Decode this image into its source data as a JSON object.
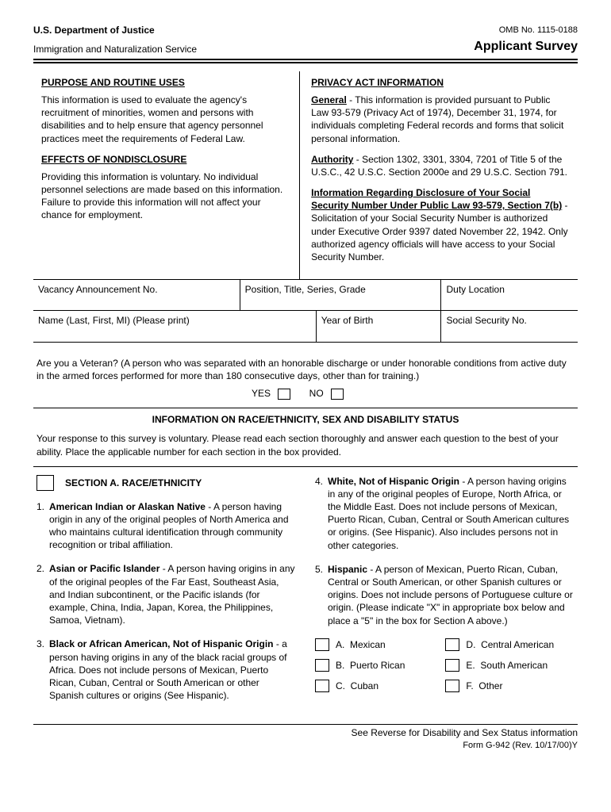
{
  "header": {
    "dept": "U.S. Department of Justice",
    "agency": "Immigration and Naturalization Service",
    "omb": "OMB No. 1115-0188",
    "title": "Applicant Survey"
  },
  "left": {
    "purpose_head": "PURPOSE AND ROUTINE USES",
    "purpose_body": "This information is used to evaluate the agency's recruitment of minorities, women and persons with disabilities and to help ensure that agency personnel practices meet the requirements of Federal Law.",
    "effects_head": "EFFECTS OF NONDISCLOSURE",
    "effects_body": "Providing this information is voluntary.  No individual personnel selections are made based on this information.  Failure to provide this information will not affect your chance for employment."
  },
  "right": {
    "privacy_head": "PRIVACY ACT INFORMATION",
    "general_label": "General",
    "general_body": " - This information is provided pursuant to Public Law 93-579 (Privacy Act of 1974), December 31, 1974, for individuals completing Federal records and forms that solicit personal information.",
    "authority_label": "Authority",
    "authority_body": " - Section 1302, 3301, 3304, 7201 of Title 5 of the U.S.C., 42 U.S.C. Section 2000e and 29 U.S.C. Section 791.",
    "ssn_head": "Information Regarding Disclosure of Your Social Security Number Under Public Law 93-579, Section 7(b)",
    "ssn_body": " - Solicitation of your Social Security Number is authorized under Executive Order 9397 dated November 22, 1942.  Only authorized agency officials will have access to your Social Security Number."
  },
  "fields": {
    "vacancy": "Vacancy Announcement No.",
    "position": "Position, Title, Series, Grade",
    "duty": "Duty Location",
    "name": "Name (Last, First, MI) (Please print)",
    "yob": "Year of Birth",
    "ssn": "Social Security No."
  },
  "veteran": {
    "q": "Are you a Veteran?  (A person who was separated with an honorable discharge or under honorable conditions from active duty in the armed forces performed for more than 180 consecutive days, other than for training.)",
    "yes": "YES",
    "no": "NO"
  },
  "info_head": "INFORMATION ON RACE/ETHNICITY, SEX AND DISABILITY STATUS",
  "info_instr": "Your response to this survey is voluntary.  Please read each section thoroughly and answer each question to the best of your ability.  Place the applicable number for each section in the box provided.",
  "sectionA": {
    "title": "SECTION A.  RACE/ETHNICITY",
    "items": [
      {
        "n": "1.",
        "label": "American Indian or Alaskan Native",
        "body": " - A person having origin in any of the original peoples of North America and who maintains cultural  identification through community recognition or tribal affiliation."
      },
      {
        "n": "2.",
        "label": "Asian or Pacific Islander",
        "body": " - A person having origins in any of the original peoples of the Far East, Southeast Asia, and Indian subcontinent, or the Pacific islands (for example, China, India, Japan, Korea, the Philippines, Samoa, Vietnam)."
      },
      {
        "n": "3.",
        "label": "Black or African American, Not of Hispanic Origin",
        "body": " - a person having origins in any of the black racial groups of Africa.  Does not include persons of Mexican, Puerto Rican, Cuban, Central or South American or other Spanish cultures or origins (See Hispanic)."
      },
      {
        "n": "4.",
        "label": "White, Not of Hispanic Origin",
        "body": " - A person having origins in any of the original peoples of Europe, North Africa, or the Middle East.  Does not include persons of Mexican, Puerto Rican, Cuban, Central or South American cultures or origins.  (See Hispanic).  Also includes persons not in other categories."
      },
      {
        "n": "5.",
        "label": "Hispanic",
        "body": " - A person of Mexican, Puerto Rican, Cuban, Central or South American, or other Spanish cultures or origins.  Does not include persons of Portuguese culture or origin.  (Please indicate \"X\" in appropriate box below and place a \"5\" in the box for Section A above.)"
      }
    ],
    "subs": [
      {
        "k": "A.",
        "v": "Mexican"
      },
      {
        "k": "D.",
        "v": "Central  American"
      },
      {
        "k": "B.",
        "v": "Puerto Rican"
      },
      {
        "k": "E.",
        "v": "South American"
      },
      {
        "k": "C.",
        "v": "Cuban"
      },
      {
        "k": "F.",
        "v": "Other"
      }
    ]
  },
  "footer": {
    "line1": "See Reverse for Disability and Sex Status information",
    "line2": "Form G-942 (Rev. 10/17/00)Y"
  }
}
